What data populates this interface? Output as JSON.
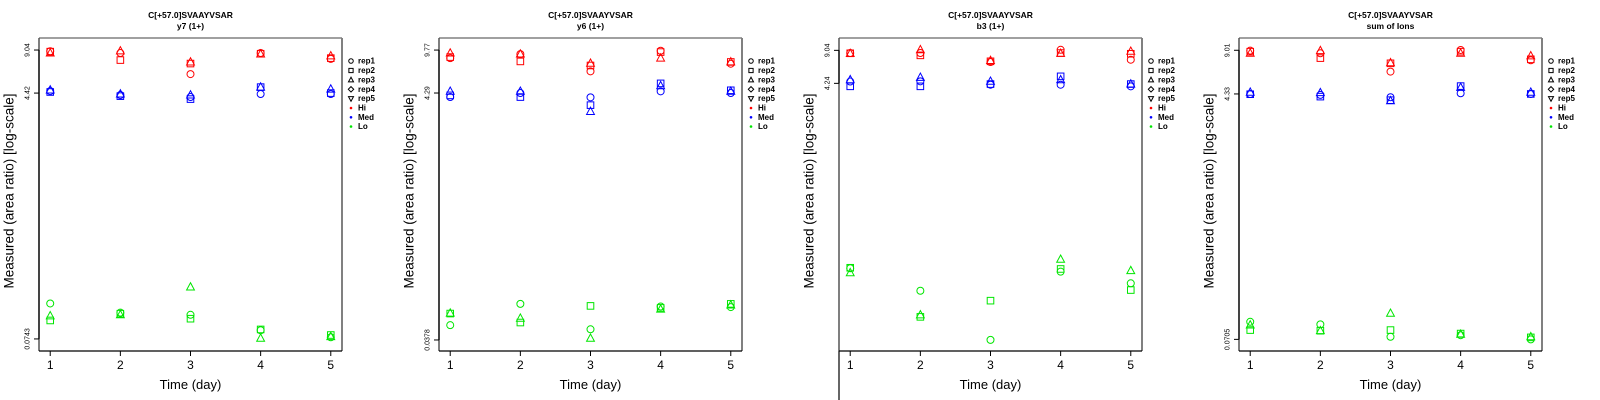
{
  "legend": {
    "position": "right",
    "entries": [
      {
        "label": "rep1",
        "symbol": "circle",
        "color": "#000000"
      },
      {
        "label": "rep2",
        "symbol": "square",
        "color": "#000000"
      },
      {
        "label": "rep3",
        "symbol": "triangle-up",
        "color": "#000000"
      },
      {
        "label": "rep4",
        "symbol": "diamond",
        "color": "#000000"
      },
      {
        "label": "rep5",
        "symbol": "triangle-down",
        "color": "#000000"
      },
      {
        "label": "Hi",
        "symbol": "dot",
        "color": "#ff0000"
      },
      {
        "label": "Med",
        "symbol": "dot",
        "color": "#0000ff"
      },
      {
        "label": "Lo",
        "symbol": "dot",
        "color": "#00e600"
      }
    ]
  },
  "chart_data": [
    {
      "type": "scatter",
      "title": "C[+57.0]SVAAYVSAR",
      "subtitle": "y7 (1+)",
      "xlabel": "Time (day)",
      "ylabel": "Measured (area ratio) [log-scale]",
      "y_scale": "log",
      "grid": false,
      "xlim": [
        0.84,
        5.16
      ],
      "ylim": [
        0.0608,
        11.04
      ],
      "x_ticks": [
        1,
        2,
        3,
        4,
        5
      ],
      "y_ticks": [
        {
          "value": 9.04,
          "label": "9.04"
        },
        {
          "value": 4.42,
          "label": "4.42"
        },
        {
          "value": 0.0743,
          "label": "0.0743"
        }
      ],
      "x": [
        1,
        2,
        3,
        4,
        5
      ],
      "series": [
        {
          "name": "Hi",
          "color": "#ff0000",
          "replicates": [
            {
              "rep": "rep1",
              "symbol": "circle",
              "values": [
                8.85,
                8.6,
                6.06,
                8.6,
                7.8
              ]
            },
            {
              "rep": "rep2",
              "symbol": "square",
              "values": [
                8.8,
                7.65,
                7.22,
                8.5,
                7.9
              ]
            },
            {
              "rep": "rep3",
              "symbol": "triangle-up",
              "values": [
                8.6,
                8.9,
                7.4,
                8.45,
                8.2
              ]
            }
          ]
        },
        {
          "name": "Med",
          "color": "#0000ff",
          "replicates": [
            {
              "rep": "rep1",
              "symbol": "circle",
              "values": [
                4.57,
                4.28,
                4.14,
                4.35,
                4.35
              ]
            },
            {
              "rep": "rep2",
              "symbol": "square",
              "values": [
                4.5,
                4.2,
                4.0,
                4.88,
                4.42
              ]
            },
            {
              "rep": "rep3",
              "symbol": "triangle-up",
              "values": [
                4.65,
                4.35,
                4.28,
                4.88,
                4.72
              ]
            }
          ]
        },
        {
          "name": "Lo",
          "color": "#00e600",
          "replicates": [
            {
              "rep": "rep1",
              "symbol": "circle",
              "values": [
                0.134,
                0.115,
                0.111,
                0.0858,
                0.0764
              ]
            },
            {
              "rep": "rep2",
              "symbol": "square",
              "values": [
                0.101,
                0.113,
                0.104,
                0.087,
                0.0793
              ]
            },
            {
              "rep": "rep3",
              "symbol": "triangle-up",
              "values": [
                0.109,
                0.111,
                0.176,
                0.0751,
                0.0772
              ]
            }
          ]
        }
      ]
    },
    {
      "type": "scatter",
      "title": "C[+57.0]SVAAYVSAR",
      "subtitle": "y6 (1+)",
      "xlabel": "Time (day)",
      "ylabel": "Measured (area ratio) [log-scale]",
      "y_scale": "log",
      "grid": false,
      "xlim": [
        0.84,
        5.16
      ],
      "ylim": [
        0.0306,
        12.31
      ],
      "x_ticks": [
        1,
        2,
        3,
        4,
        5
      ],
      "y_ticks": [
        {
          "value": 9.77,
          "label": "9.77"
        },
        {
          "value": 4.29,
          "label": "4.29"
        },
        {
          "value": 0.0378,
          "label": "0.0378"
        }
      ],
      "x": [
        1,
        2,
        3,
        4,
        5
      ],
      "series": [
        {
          "name": "Hi",
          "color": "#ff0000",
          "replicates": [
            {
              "rep": "rep1",
              "symbol": "circle",
              "values": [
                8.37,
                9.04,
                6.5,
                9.64,
                7.52
              ]
            },
            {
              "rep": "rep2",
              "symbol": "square",
              "values": [
                8.54,
                7.86,
                7.27,
                9.4,
                7.78
              ]
            },
            {
              "rep": "rep3",
              "symbol": "triangle-up",
              "values": [
                9.22,
                9.04,
                7.58,
                8.37,
                7.78
              ]
            }
          ]
        },
        {
          "name": "Med",
          "color": "#0000ff",
          "replicates": [
            {
              "rep": "rep1",
              "symbol": "circle",
              "values": [
                3.97,
                4.29,
                3.95,
                4.43,
                4.29
              ]
            },
            {
              "rep": "rep2",
              "symbol": "square",
              "values": [
                4.1,
                3.97,
                3.4,
                5.16,
                4.52
              ]
            },
            {
              "rep": "rep3",
              "symbol": "triangle-up",
              "values": [
                4.43,
                4.43,
                3.01,
                4.93,
                4.43
              ]
            }
          ]
        },
        {
          "name": "Lo",
          "color": "#00e600",
          "replicates": [
            {
              "rep": "rep1",
              "symbol": "circle",
              "values": [
                0.0502,
                0.0755,
                0.0464,
                0.0718,
                0.071
              ]
            },
            {
              "rep": "rep2",
              "symbol": "square",
              "values": [
                0.0627,
                0.0528,
                0.0726,
                0.0699,
                0.0755
              ]
            },
            {
              "rep": "rep3",
              "symbol": "triangle-up",
              "values": [
                0.0632,
                0.0573,
                0.039,
                0.0682,
                0.0738
              ]
            }
          ]
        }
      ]
    },
    {
      "type": "scatter",
      "title": "C[+57.0]SVAAYVSAR",
      "subtitle": "b3 (1+)",
      "xlabel": "Time (day)",
      "ylabel": "Measured (area ratio) [log-scale]",
      "y_scale": "log",
      "grid": false,
      "xlim": [
        0.84,
        5.16
      ],
      "ylim": [
        0.00914,
        12.0
      ],
      "x_ticks": [
        1,
        2,
        3,
        4,
        5
      ],
      "y_ticks": [
        {
          "value": 9.04,
          "label": "9.04"
        },
        {
          "value": 4.24,
          "label": "4.24"
        }
      ],
      "x": [
        1,
        2,
        3,
        4,
        5
      ],
      "series": [
        {
          "name": "Hi",
          "color": "#ff0000",
          "replicates": [
            {
              "rep": "rep1",
              "symbol": "circle",
              "values": [
                8.5,
                8.5,
                6.91,
                9.16,
                7.29
              ]
            },
            {
              "rep": "rep2",
              "symbol": "square",
              "values": [
                8.45,
                8.06,
                7.03,
                8.5,
                8.36
              ]
            },
            {
              "rep": "rep3",
              "symbol": "triangle-up",
              "values": [
                8.4,
                9.16,
                7.15,
                8.42,
                8.83
              ]
            }
          ]
        },
        {
          "name": "Med",
          "color": "#0000ff",
          "replicates": [
            {
              "rep": "rep1",
              "symbol": "circle",
              "values": [
                4.42,
                4.44,
                4.11,
                4.11,
                3.96
              ]
            },
            {
              "rep": "rep2",
              "symbol": "square",
              "values": [
                3.96,
                3.96,
                4.17,
                4.98,
                4.17
              ]
            },
            {
              "rep": "rep3",
              "symbol": "triangle-up",
              "values": [
                4.6,
                4.86,
                4.44,
                4.6,
                4.17
              ]
            }
          ]
        },
        {
          "name": "Lo",
          "color": "#00e600",
          "replicates": [
            {
              "rep": "rep1",
              "symbol": "circle",
              "values": [
                0.061,
                0.0364,
                0.0118,
                0.0564,
                0.0432
              ]
            },
            {
              "rep": "rep2",
              "symbol": "square",
              "values": [
                0.0617,
                0.02,
                0.029,
                0.06,
                0.037
              ]
            },
            {
              "rep": "rep3",
              "symbol": "triangle-up",
              "values": [
                0.055,
                0.0209,
                null,
                0.0748,
                0.0577
              ]
            }
          ]
        }
      ]
    },
    {
      "type": "scatter",
      "title": "C[+57.0]SVAAYVSAR",
      "subtitle": "sum of Ions",
      "xlabel": "Time (day)",
      "ylabel": "Measured (area ratio) [log-scale]",
      "y_scale": "log",
      "grid": false,
      "xlim": [
        0.84,
        5.16
      ],
      "ylim": [
        0.058,
        11.07
      ],
      "x_ticks": [
        1,
        2,
        3,
        4,
        5
      ],
      "y_ticks": [
        {
          "value": 9.01,
          "label": "9.01"
        },
        {
          "value": 4.33,
          "label": "4.33"
        },
        {
          "value": 0.0705,
          "label": "0.0705"
        }
      ],
      "x": [
        1,
        2,
        3,
        4,
        5
      ],
      "series": [
        {
          "name": "Hi",
          "color": "#ff0000",
          "replicates": [
            {
              "rep": "rep1",
              "symbol": "circle",
              "values": [
                8.95,
                8.57,
                6.3,
                9.06,
                7.62
              ]
            },
            {
              "rep": "rep2",
              "symbol": "square",
              "values": [
                8.8,
                7.9,
                7.24,
                8.8,
                7.74
              ]
            },
            {
              "rep": "rep3",
              "symbol": "triangle-up",
              "values": [
                8.57,
                8.95,
                7.3,
                8.57,
                8.2
              ]
            }
          ]
        },
        {
          "name": "Med",
          "color": "#0000ff",
          "replicates": [
            {
              "rep": "rep1",
              "symbol": "circle",
              "values": [
                4.33,
                4.26,
                4.1,
                4.38,
                4.33
              ]
            },
            {
              "rep": "rep2",
              "symbol": "square",
              "values": [
                4.31,
                4.14,
                3.9,
                4.94,
                4.33
              ]
            },
            {
              "rep": "rep3",
              "symbol": "triangle-up",
              "values": [
                4.45,
                4.42,
                3.86,
                4.83,
                4.45
              ]
            }
          ]
        },
        {
          "name": "Lo",
          "color": "#00e600",
          "replicates": [
            {
              "rep": "rep1",
              "symbol": "circle",
              "values": [
                0.0947,
                0.0907,
                0.0736,
                0.0756,
                0.0705
              ]
            },
            {
              "rep": "rep2",
              "symbol": "square",
              "values": [
                0.0824,
                0.0815,
                0.0824,
                0.0777,
                0.0729
              ]
            },
            {
              "rep": "rep3",
              "symbol": "triangle-up",
              "values": [
                0.0897,
                0.0815,
                0.1091,
                0.0768,
                0.0736
              ]
            }
          ]
        }
      ]
    }
  ]
}
